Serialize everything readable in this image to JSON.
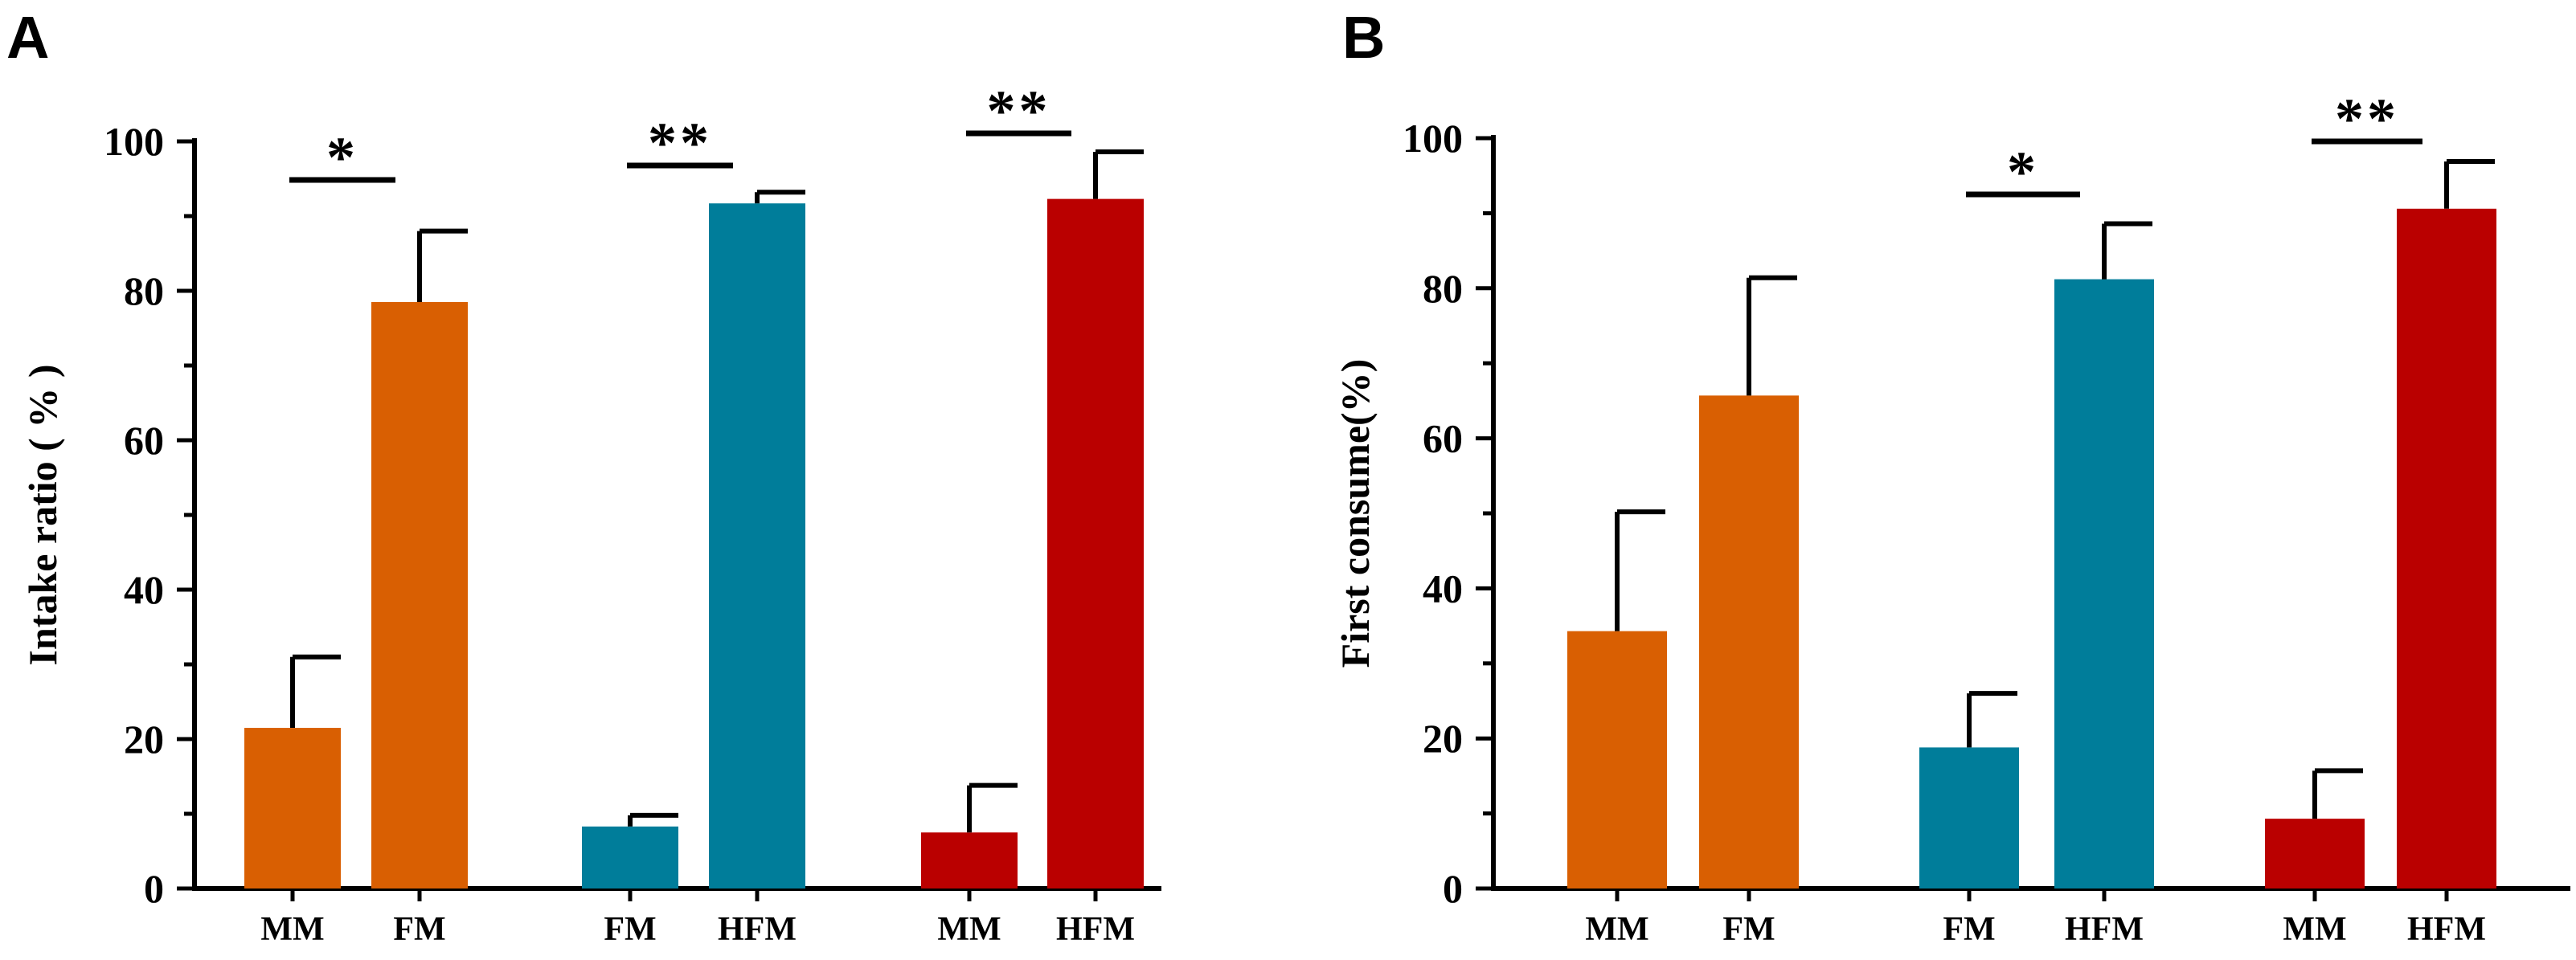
{
  "chart_data": [
    {
      "type": "bar",
      "panel_label": "A",
      "ylabel": "Intake ratio ( % )",
      "ylim": [
        0,
        100
      ],
      "yticks": [
        0,
        20,
        40,
        60,
        80,
        100
      ],
      "grid": false,
      "groups": [
        {
          "bars": [
            {
              "label": "MM",
              "value": 21.5,
              "error": 9.5,
              "color": "#D95F02"
            },
            {
              "label": "FM",
              "value": 78.5,
              "error": 9.5,
              "color": "#D95F02"
            }
          ],
          "significance": "*"
        },
        {
          "bars": [
            {
              "label": "FM",
              "value": 8.3,
              "error": 1.5,
              "color": "#007D9A"
            },
            {
              "label": "HFM",
              "value": 91.7,
              "error": 1.5,
              "color": "#007D9A"
            }
          ],
          "significance": "**"
        },
        {
          "bars": [
            {
              "label": "MM",
              "value": 7.5,
              "error": 6.3,
              "color": "#BA0000"
            },
            {
              "label": "HFM",
              "value": 92.3,
              "error": 6.3,
              "color": "#BA0000"
            }
          ],
          "significance": "**"
        }
      ]
    },
    {
      "type": "bar",
      "panel_label": "B",
      "ylabel": "First consume(%)",
      "ylim": [
        0,
        100
      ],
      "yticks": [
        0,
        20,
        40,
        60,
        80,
        100
      ],
      "grid": false,
      "groups": [
        {
          "bars": [
            {
              "label": "MM",
              "value": 34.3,
              "error": 15.9,
              "color": "#D95F02"
            },
            {
              "label": "FM",
              "value": 65.7,
              "error": 15.7,
              "color": "#D95F02"
            }
          ],
          "significance": ""
        },
        {
          "bars": [
            {
              "label": "FM",
              "value": 18.8,
              "error": 7.2,
              "color": "#007D9A"
            },
            {
              "label": "HFM",
              "value": 81.2,
              "error": 7.4,
              "color": "#007D9A"
            }
          ],
          "significance": "*"
        },
        {
          "bars": [
            {
              "label": "MM",
              "value": 9.3,
              "error": 6.4,
              "color": "#BA0000"
            },
            {
              "label": "HFM",
              "value": 90.6,
              "error": 6.3,
              "color": "#BA0000"
            }
          ],
          "significance": "**"
        }
      ]
    }
  ]
}
